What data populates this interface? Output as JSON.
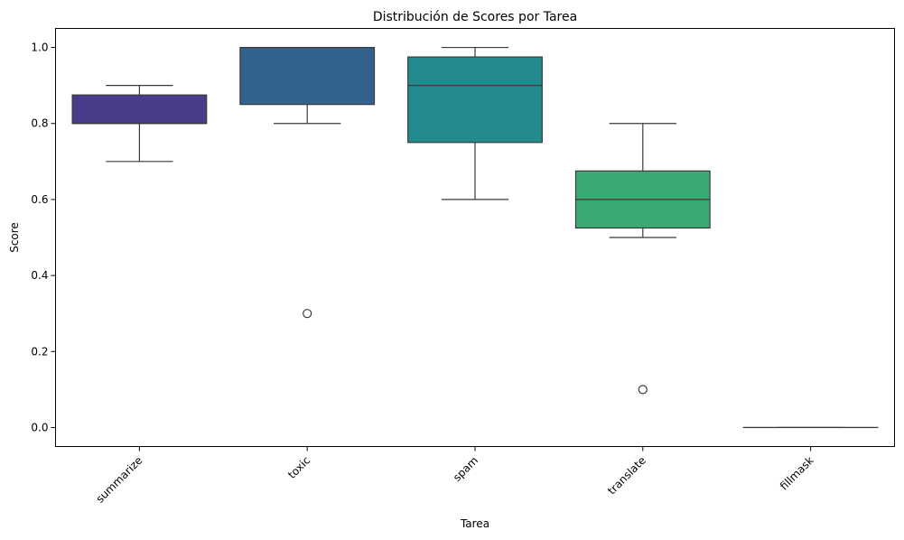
{
  "chart_data": {
    "type": "box",
    "title": "Distribución de Scores por Tarea",
    "xlabel": "Tarea",
    "ylabel": "Score",
    "ylim": [
      -0.05,
      1.05
    ],
    "yticks": [
      0.0,
      0.2,
      0.4,
      0.6,
      0.8,
      1.0
    ],
    "ytick_labels": [
      "0.0",
      "0.2",
      "0.4",
      "0.6",
      "0.8",
      "1.0"
    ],
    "grid": false,
    "x_tick_rotation": 45,
    "categories": [
      "summarize",
      "toxic",
      "spam",
      "translate",
      "fillmask"
    ],
    "boxes": [
      {
        "category": "summarize",
        "whisker_low": 0.7,
        "q1": 0.8,
        "median": 0.8,
        "q3": 0.875,
        "whisker_high": 0.9,
        "outliers": [],
        "color": "#483D8B"
      },
      {
        "category": "toxic",
        "whisker_low": 0.8,
        "q1": 0.85,
        "median": 1.0,
        "q3": 1.0,
        "whisker_high": 1.0,
        "outliers": [
          0.3
        ],
        "color": "#33638D"
      },
      {
        "category": "spam",
        "whisker_low": 0.6,
        "q1": 0.75,
        "median": 0.9,
        "q3": 0.975,
        "whisker_high": 1.0,
        "outliers": [],
        "color": "#238A8D"
      },
      {
        "category": "translate",
        "whisker_low": 0.5,
        "q1": 0.525,
        "median": 0.6,
        "q3": 0.675,
        "whisker_high": 0.8,
        "outliers": [
          0.1
        ],
        "color": "#3BAA72"
      },
      {
        "category": "fillmask",
        "whisker_low": 0.0,
        "q1": 0.0,
        "median": 0.0,
        "q3": 0.0,
        "whisker_high": 0.0,
        "outliers": [],
        "color": "#8FD14F"
      }
    ]
  }
}
